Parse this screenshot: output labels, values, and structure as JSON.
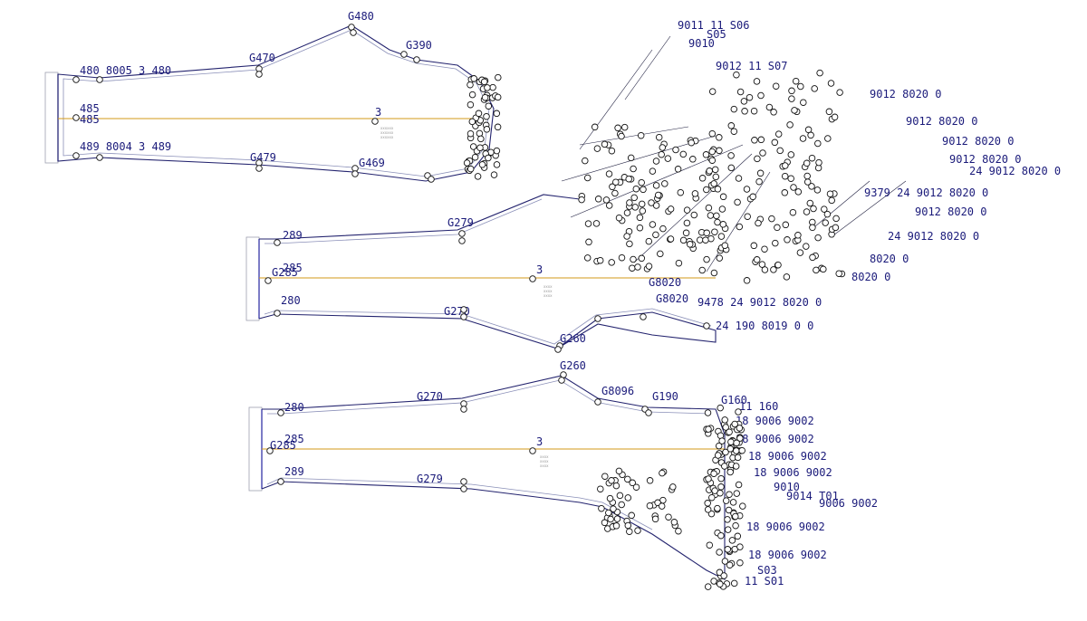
{
  "pieces": [
    {
      "id": "upper",
      "labels": [
        "480 8005 3 480",
        "485",
        "485",
        "489 8004 3 489",
        "G480",
        "G470",
        "G479",
        "G469",
        "G390",
        "3",
        "9011 11 S06",
        "S05",
        "9010",
        "9012 11 S07",
        "9012 8020 0",
        "9012 8020 0",
        "9012 8020 0",
        "9012 8020 0",
        "24 9012 8020 0",
        "9379 24 9012 8020 0",
        "9012 8020 0",
        "24 9012 8020 0",
        "8020 0",
        "8020 0"
      ]
    },
    {
      "id": "middle",
      "labels": [
        "289",
        "285",
        "G285",
        "280",
        "G279",
        "G270",
        "G260",
        "G8020",
        "G8020",
        "9478 24 9012 8020 0",
        "24 190 8019 0 0",
        "3"
      ]
    },
    {
      "id": "lower",
      "labels": [
        "280",
        "285",
        "G285",
        "289",
        "G270",
        "G279",
        "G260",
        "G8096",
        "G190",
        "G160",
        "11 160",
        "18 9006 9002",
        "18 9006 9002",
        "18 9006 9002",
        "18 9006 9002",
        "9010",
        "9014 T01",
        "9006 9002",
        "18 9006 9002",
        "18 9006 9002",
        "S03",
        "11 S01",
        "3"
      ]
    }
  ]
}
